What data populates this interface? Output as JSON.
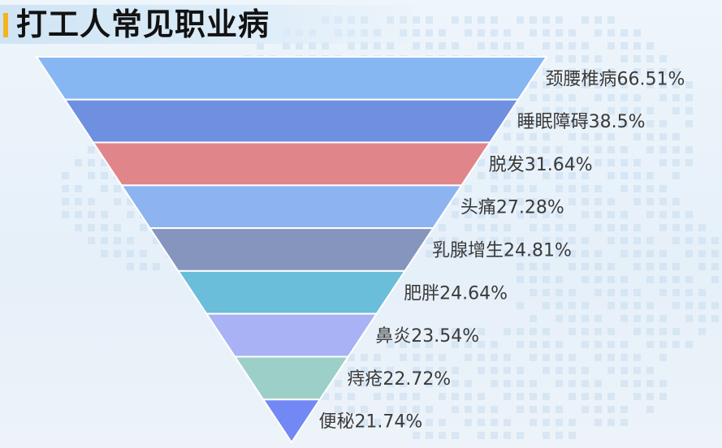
{
  "title": "打工人常见职业病",
  "colors": {
    "accent": "#f2b51c",
    "segments": [
      "#86b7f2",
      "#6f8fe0",
      "#e0868a",
      "#8db3f0",
      "#8595be",
      "#6abed9",
      "#a9b2f4",
      "#9bcfc8",
      "#7288f4"
    ]
  },
  "chart_data": {
    "type": "funnel",
    "title": "打工人常见职业病",
    "categories": [
      "颈腰椎病",
      "睡眠障碍",
      "脱发",
      "头痛",
      "乳腺增生",
      "肥胖",
      "鼻炎",
      "痔疮",
      "便秘"
    ],
    "values": [
      66.51,
      38.5,
      31.64,
      27.28,
      24.81,
      24.64,
      23.54,
      22.72,
      21.74
    ],
    "labels": [
      "颈腰椎病66.51%",
      "睡眠障碍38.5%",
      "脱发31.64%",
      "头痛27.28%",
      "乳腺增生24.81%",
      "肥胖24.64%",
      "鼻炎23.54%",
      "痔疮22.72%",
      "便秘21.74%"
    ],
    "unit": "%",
    "sort": "descending"
  }
}
